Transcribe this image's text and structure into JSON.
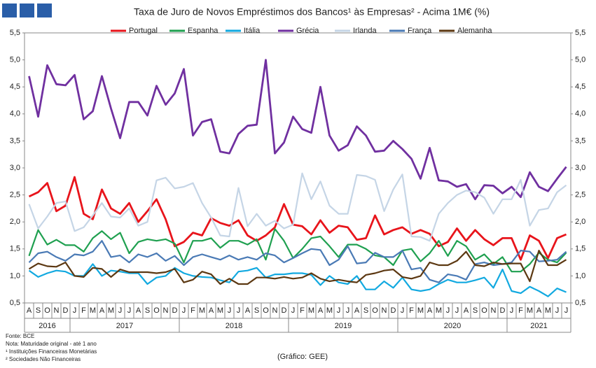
{
  "chart_data": {
    "type": "line",
    "title": "Taxa de Juro de Novos Empréstimos dos Bancos¹ às Empresas² - Acima 1M€ (%)",
    "categories": [
      "A",
      "S",
      "O",
      "N",
      "D",
      "J",
      "F",
      "M",
      "A",
      "M",
      "J",
      "J",
      "A",
      "S",
      "O",
      "N",
      "D",
      "J",
      "F",
      "M",
      "A",
      "M",
      "J",
      "J",
      "A",
      "S",
      "O",
      "N",
      "D",
      "J",
      "F",
      "M",
      "A",
      "M",
      "J",
      "J",
      "A",
      "S",
      "O",
      "N",
      "D",
      "J",
      "F",
      "M",
      "A",
      "M",
      "J",
      "J",
      "A",
      "S",
      "O",
      "N",
      "D",
      "J",
      "F",
      "M",
      "A",
      "M",
      "J",
      "J"
    ],
    "year_groups": [
      {
        "label": "2016",
        "months": 5
      },
      {
        "label": "2017",
        "months": 12
      },
      {
        "label": "2018",
        "months": 12
      },
      {
        "label": "2019",
        "months": 12
      },
      {
        "label": "2020",
        "months": 12
      },
      {
        "label": "2021",
        "months": 7
      }
    ],
    "ylim": [
      0.5,
      5.5
    ],
    "yticks": [
      {
        "value": 0.5,
        "label": "0,5"
      },
      {
        "value": 1.0,
        "label": "1,0"
      },
      {
        "value": 1.5,
        "label": "1,5"
      },
      {
        "value": 2.0,
        "label": "2,0"
      },
      {
        "value": 2.5,
        "label": "2,5"
      },
      {
        "value": 3.0,
        "label": "3,0"
      },
      {
        "value": 3.5,
        "label": "3,5"
      },
      {
        "value": 4.0,
        "label": "4,0"
      },
      {
        "value": 4.5,
        "label": "4,5"
      },
      {
        "value": 5.0,
        "label": "5,0"
      },
      {
        "value": 5.5,
        "label": "5,5"
      }
    ],
    "grid": false,
    "legend": "top",
    "series": [
      {
        "name": "Portugal",
        "color": "#e8141b",
        "values": [
          2.47,
          2.55,
          2.72,
          2.2,
          2.3,
          2.83,
          2.15,
          2.05,
          2.6,
          2.25,
          2.15,
          2.35,
          2.0,
          2.2,
          2.42,
          2.05,
          1.55,
          1.63,
          1.8,
          1.75,
          2.07,
          1.98,
          1.93,
          2.03,
          1.75,
          1.65,
          1.75,
          1.9,
          2.33,
          1.95,
          1.92,
          1.77,
          2.03,
          1.8,
          1.93,
          1.9,
          1.67,
          1.7,
          2.12,
          1.77,
          1.85,
          1.9,
          1.78,
          1.85,
          1.78,
          1.55,
          1.63,
          1.88,
          1.65,
          1.85,
          1.68,
          1.57,
          1.7,
          1.7,
          1.3,
          1.75,
          1.65,
          1.33,
          1.7,
          1.77
        ]
      },
      {
        "name": "Espanha",
        "color": "#1fa050",
        "values": [
          1.37,
          1.85,
          1.58,
          1.67,
          1.57,
          1.57,
          1.45,
          1.7,
          1.83,
          1.68,
          1.8,
          1.42,
          1.63,
          1.68,
          1.65,
          1.68,
          1.6,
          1.25,
          1.65,
          1.65,
          1.7,
          1.52,
          1.65,
          1.65,
          1.58,
          1.68,
          1.3,
          1.87,
          1.65,
          1.33,
          1.5,
          1.7,
          1.73,
          1.55,
          1.35,
          1.58,
          1.58,
          1.5,
          1.38,
          1.35,
          1.2,
          1.47,
          1.5,
          1.27,
          1.42,
          1.65,
          1.37,
          1.65,
          1.55,
          1.3,
          1.4,
          1.22,
          1.35,
          1.08,
          1.08,
          1.22,
          1.43,
          1.3,
          1.25,
          1.43
        ]
      },
      {
        "name": "Itália",
        "color": "#12a9e0",
        "values": [
          1.1,
          0.98,
          1.05,
          1.1,
          1.08,
          1.0,
          1.0,
          1.22,
          1.0,
          1.1,
          1.08,
          1.05,
          1.05,
          0.85,
          0.97,
          1.0,
          1.15,
          1.05,
          1.0,
          0.98,
          0.97,
          0.92,
          0.88,
          1.08,
          1.1,
          1.15,
          0.97,
          1.03,
          1.03,
          1.05,
          1.05,
          1.02,
          0.83,
          1.0,
          0.88,
          0.85,
          1.0,
          0.75,
          0.75,
          0.9,
          0.78,
          0.97,
          0.75,
          0.72,
          0.75,
          0.85,
          0.93,
          0.88,
          0.88,
          0.92,
          0.97,
          0.78,
          1.12,
          0.72,
          0.68,
          0.8,
          0.72,
          0.62,
          0.77,
          0.7
        ]
      },
      {
        "name": "Grécia",
        "color": "#7030a0",
        "values": [
          4.7,
          3.95,
          4.9,
          4.55,
          4.53,
          4.72,
          3.9,
          4.05,
          4.7,
          4.1,
          3.55,
          4.22,
          4.22,
          3.97,
          4.52,
          4.17,
          4.38,
          4.83,
          3.6,
          3.85,
          3.9,
          3.3,
          3.27,
          3.63,
          3.78,
          3.8,
          5.0,
          3.27,
          3.47,
          3.95,
          3.72,
          3.65,
          4.5,
          3.6,
          3.32,
          3.42,
          3.77,
          3.6,
          3.3,
          3.32,
          3.5,
          3.35,
          3.17,
          2.8,
          3.37,
          2.77,
          2.75,
          2.65,
          2.7,
          2.42,
          2.68,
          2.67,
          2.53,
          2.65,
          2.46,
          2.92,
          2.65,
          2.57,
          2.8,
          3.02
        ]
      },
      {
        "name": "Irlanda",
        "color": "#c5d5e6",
        "values": [
          2.33,
          1.88,
          2.1,
          2.35,
          2.38,
          1.83,
          1.9,
          2.12,
          2.35,
          2.1,
          2.08,
          2.25,
          1.93,
          2.0,
          2.77,
          2.82,
          2.62,
          2.65,
          2.72,
          2.35,
          2.08,
          1.75,
          1.73,
          2.63,
          1.92,
          2.15,
          1.93,
          2.02,
          1.88,
          1.95,
          2.9,
          2.42,
          2.75,
          2.3,
          2.15,
          2.15,
          2.87,
          2.85,
          2.78,
          2.2,
          2.6,
          2.88,
          1.73,
          1.72,
          1.65,
          2.15,
          2.35,
          2.5,
          2.58,
          2.55,
          2.45,
          2.15,
          2.42,
          2.42,
          2.78,
          1.93,
          2.22,
          2.25,
          2.55,
          2.68
        ]
      },
      {
        "name": "França",
        "color": "#4a7ab5",
        "values": [
          1.25,
          1.42,
          1.45,
          1.35,
          1.28,
          1.4,
          1.38,
          1.45,
          1.65,
          1.35,
          1.38,
          1.25,
          1.4,
          1.35,
          1.42,
          1.28,
          1.37,
          1.2,
          1.35,
          1.4,
          1.35,
          1.3,
          1.38,
          1.3,
          1.35,
          1.3,
          1.42,
          1.38,
          1.25,
          1.33,
          1.42,
          1.5,
          1.48,
          1.2,
          1.3,
          1.55,
          1.23,
          1.25,
          1.43,
          1.35,
          1.35,
          1.47,
          1.12,
          1.15,
          0.93,
          0.88,
          1.03,
          1.0,
          0.93,
          1.22,
          1.25,
          1.2,
          1.22,
          1.25,
          1.47,
          1.45,
          1.27,
          1.28,
          1.3,
          1.45
        ]
      },
      {
        "name": "Alemanha",
        "color": "#5c3812",
        "values": [
          1.13,
          1.23,
          1.18,
          1.17,
          1.25,
          1.0,
          0.98,
          1.15,
          1.13,
          0.98,
          1.12,
          1.07,
          1.07,
          1.07,
          1.05,
          1.07,
          1.13,
          0.88,
          0.93,
          1.08,
          1.03,
          0.85,
          0.95,
          0.85,
          0.85,
          0.97,
          0.97,
          0.95,
          0.98,
          0.95,
          0.97,
          1.05,
          0.95,
          0.9,
          0.93,
          0.9,
          0.88,
          1.02,
          1.05,
          1.1,
          1.12,
          0.98,
          0.95,
          1.0,
          1.25,
          1.2,
          1.2,
          1.28,
          1.45,
          1.2,
          1.18,
          1.25,
          1.22,
          1.23,
          1.23,
          0.9,
          1.47,
          1.2,
          1.2,
          1.3
        ]
      }
    ],
    "source": "Fonte: BCE",
    "notes": [
      "Nota: Maturidade original - até 1 ano",
      "¹ Instituições Financeiras Monetárias",
      "² Sociedades Não Financeiras"
    ],
    "credit": "(Gráfico: GEE)"
  }
}
